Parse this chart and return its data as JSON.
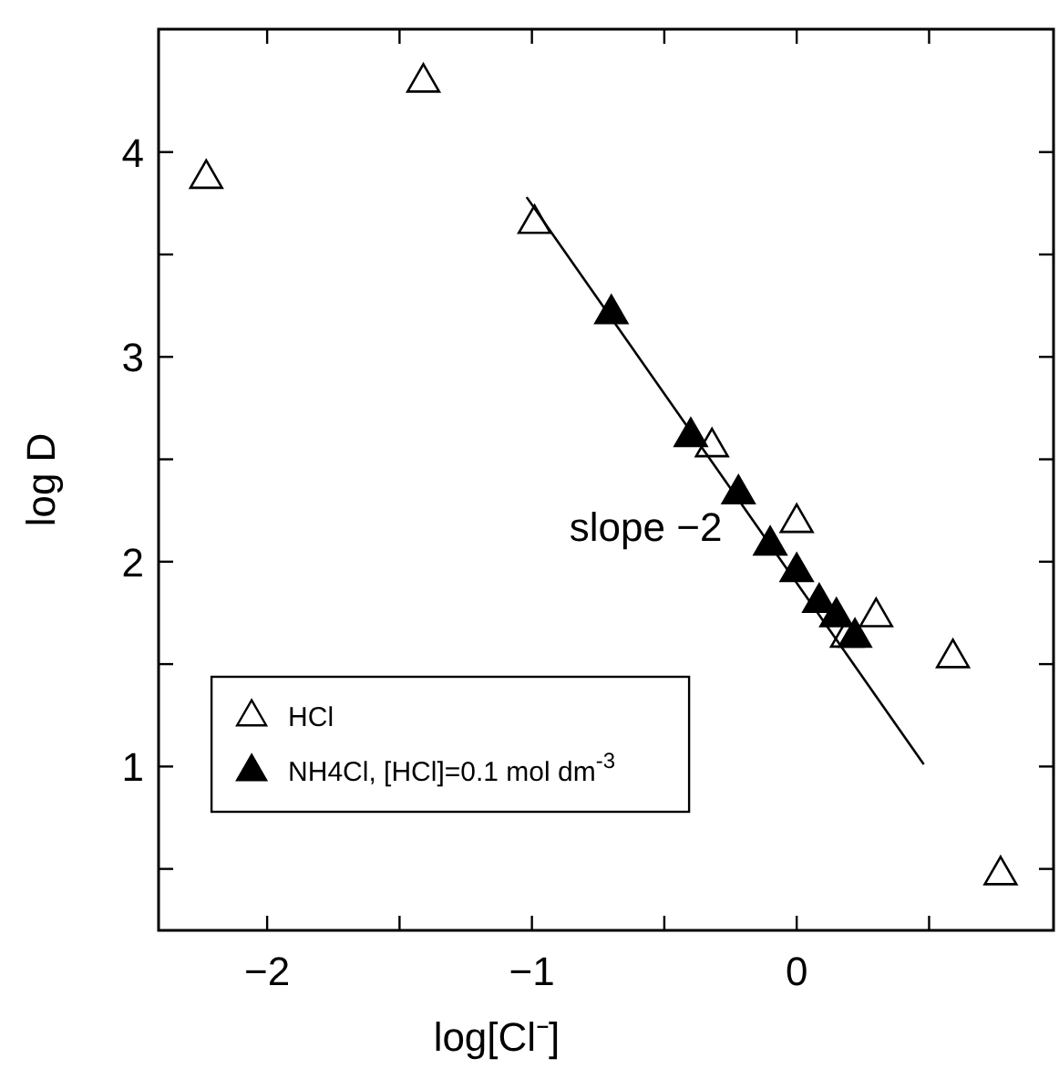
{
  "chart_data": {
    "type": "scatter",
    "xlabel": "log[Cl⁻]",
    "ylabel": "log D",
    "xlim": [
      -2.41,
      0.97
    ],
    "ylim": [
      0.2,
      4.6
    ],
    "xticks": [
      {
        "value": -2,
        "label": "−2"
      },
      {
        "value": -1.5,
        "label": null
      },
      {
        "value": -1,
        "label": "−1"
      },
      {
        "value": -0.5,
        "label": null
      },
      0,
      {
        "value": 0.5,
        "label": null
      }
    ],
    "yticks": [
      {
        "value": 0.5,
        "label": null
      },
      1,
      {
        "value": 1.5,
        "label": null
      },
      2,
      {
        "value": 2.5,
        "label": null
      },
      3,
      {
        "value": 3.5,
        "label": null
      },
      4
    ],
    "marker": "triangle",
    "legend": "bottom left",
    "grid": false,
    "annotations": [
      "slope −2"
    ],
    "series": [
      {
        "name": "HCl",
        "color": "#ffffff",
        "x": [
          -2.23,
          -1.41,
          -0.99,
          -0.32,
          0.0,
          0.19,
          0.3,
          0.59,
          0.77
        ],
        "values": [
          3.87,
          4.34,
          3.65,
          2.56,
          2.19,
          1.63,
          1.73,
          1.53,
          0.47
        ]
      },
      {
        "name": "NH4Cl, [HCl]=0.1 mol dm$^{-3}$",
        "color": "#000000",
        "x": [
          -0.7,
          -0.4,
          -0.22,
          -0.1,
          0.0,
          0.085,
          0.15,
          0.22
        ],
        "values": [
          3.21,
          2.61,
          2.33,
          2.08,
          1.95,
          1.8,
          1.73,
          1.63
        ]
      },
      {
        "type": "line",
        "marker": "none",
        "color": "#000000",
        "x": [
          -1.02,
          0.48
        ],
        "values": [
          3.78,
          1.01
        ]
      }
    ]
  }
}
